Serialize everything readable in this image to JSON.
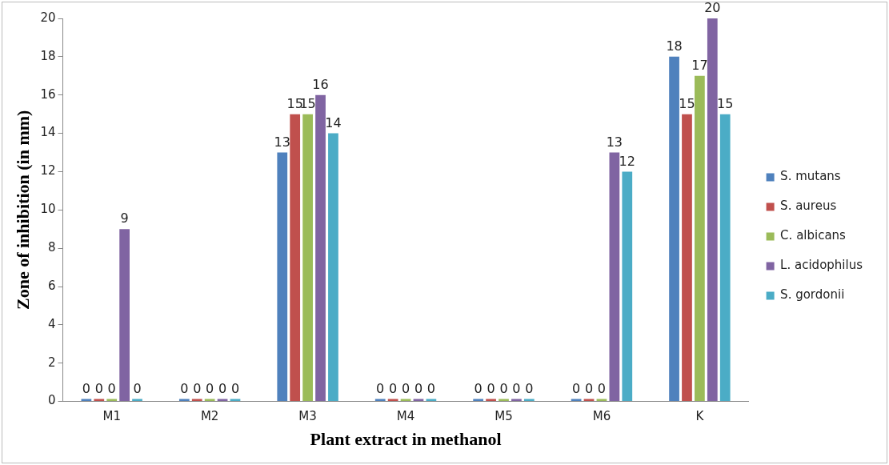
{
  "chart_data": {
    "type": "bar",
    "xlabel": "Plant extract in methanol",
    "ylabel": "Zone of inhibition (in mm)",
    "categories": [
      "M1",
      "M2",
      "M3",
      "M4",
      "M5",
      "M6",
      "K"
    ],
    "series": [
      {
        "name": "S. mutans",
        "color": "#4f81bd",
        "values": [
          0,
          0,
          13,
          0,
          0,
          0,
          18
        ]
      },
      {
        "name": "S. aureus",
        "color": "#c0504d",
        "values": [
          0,
          0,
          15,
          0,
          0,
          0,
          15
        ]
      },
      {
        "name": "C. albicans",
        "color": "#9bbb59",
        "values": [
          0,
          0,
          15,
          0,
          0,
          0,
          17
        ]
      },
      {
        "name": "L. acidophilus",
        "color": "#8064a2",
        "values": [
          9,
          0,
          16,
          0,
          0,
          13,
          20
        ]
      },
      {
        "name": "S. gordonii",
        "color": "#4bacc6",
        "values": [
          0,
          0,
          14,
          0,
          0,
          12,
          15
        ]
      }
    ],
    "ylim": [
      0,
      20
    ],
    "yticks": [
      0,
      2,
      4,
      6,
      8,
      10,
      12,
      14,
      16,
      18,
      20
    ],
    "grid": false,
    "legend": "right",
    "data_labels": true
  }
}
